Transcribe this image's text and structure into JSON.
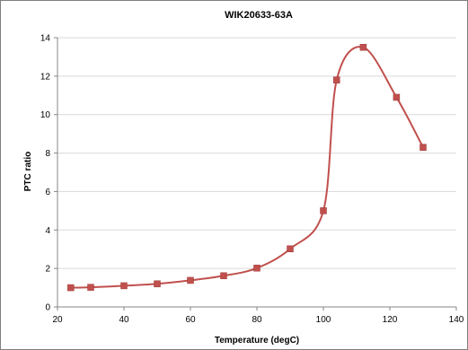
{
  "chart_data": {
    "type": "line",
    "title": "WIK20633-63A",
    "xlabel": "Temperature (degC)",
    "ylabel": "PTC ratio",
    "xlim": [
      20,
      140
    ],
    "ylim": [
      0,
      14
    ],
    "x_ticks": [
      20,
      40,
      60,
      80,
      100,
      120,
      140
    ],
    "y_ticks": [
      0,
      2,
      4,
      6,
      8,
      10,
      12,
      14
    ],
    "grid": "horizontal",
    "legend": "none",
    "smooth": true,
    "color": "#c0504d",
    "marker": "square",
    "series": [
      {
        "x": [
          24,
          30,
          40,
          50,
          60,
          70,
          80,
          90,
          100,
          104,
          112,
          122,
          130
        ],
        "y": [
          1.0,
          1.02,
          1.1,
          1.2,
          1.38,
          1.62,
          2.02,
          3.02,
          5.0,
          11.8,
          13.5,
          10.9,
          8.3
        ]
      }
    ]
  }
}
